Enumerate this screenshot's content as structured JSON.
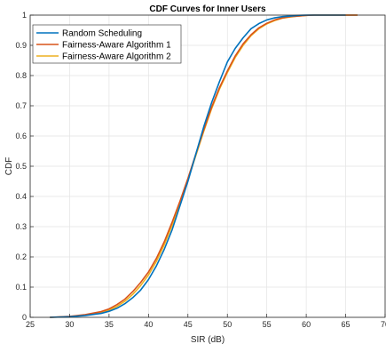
{
  "chart_data": {
    "type": "line",
    "title": "CDF Curves for Inner Users",
    "xlabel": "SIR (dB)",
    "ylabel": "CDF",
    "xlim": [
      25,
      70
    ],
    "ylim": [
      0,
      1
    ],
    "xticks": [
      25,
      30,
      35,
      40,
      45,
      50,
      55,
      60,
      65,
      70
    ],
    "yticks": [
      0,
      0.1,
      0.2,
      0.3,
      0.4,
      0.5,
      0.6,
      0.7,
      0.8,
      0.9,
      1
    ],
    "grid": true,
    "legend_position": "top-left",
    "series": [
      {
        "name": "Random Scheduling",
        "color": "#0072BD",
        "x": [
          27.5,
          30,
          32,
          34,
          35,
          36,
          37,
          38,
          39,
          40,
          41,
          42,
          43,
          44,
          45,
          46,
          47,
          48,
          49,
          50,
          51,
          52,
          53,
          54,
          55,
          56,
          57,
          58,
          59,
          60,
          61,
          62,
          63,
          65
        ],
        "y": [
          0,
          0.002,
          0.006,
          0.013,
          0.02,
          0.03,
          0.045,
          0.065,
          0.09,
          0.125,
          0.17,
          0.225,
          0.29,
          0.37,
          0.45,
          0.54,
          0.63,
          0.71,
          0.78,
          0.845,
          0.89,
          0.925,
          0.955,
          0.972,
          0.984,
          0.991,
          0.995,
          0.997,
          0.999,
          1,
          1,
          1,
          1,
          1
        ]
      },
      {
        "name": "Fairness-Aware Algorithm 1",
        "color": "#D95319",
        "x": [
          27.5,
          30,
          32,
          34,
          35,
          36,
          37,
          38,
          39,
          40,
          41,
          42,
          43,
          44,
          45,
          46,
          47,
          48,
          49,
          50,
          51,
          52,
          53,
          54,
          55,
          56,
          57,
          58,
          59,
          60,
          61,
          62,
          64,
          66.5
        ],
        "y": [
          0,
          0.003,
          0.009,
          0.019,
          0.028,
          0.042,
          0.06,
          0.085,
          0.115,
          0.15,
          0.195,
          0.25,
          0.315,
          0.385,
          0.46,
          0.54,
          0.62,
          0.695,
          0.76,
          0.815,
          0.865,
          0.905,
          0.935,
          0.958,
          0.973,
          0.984,
          0.991,
          0.995,
          0.997,
          0.999,
          1,
          1,
          1,
          1
        ]
      },
      {
        "name": "Fairness-Aware Algorithm 2",
        "color": "#EDB120",
        "x": [
          27.5,
          30,
          32,
          34,
          35,
          36,
          37,
          38,
          39,
          40,
          41,
          42,
          43,
          44,
          45,
          46,
          47,
          48,
          49,
          50,
          51,
          52,
          53,
          54,
          55,
          56,
          57,
          58,
          59,
          60,
          61,
          62,
          64,
          66.5
        ],
        "y": [
          0,
          0.002,
          0.007,
          0.016,
          0.024,
          0.036,
          0.053,
          0.076,
          0.105,
          0.14,
          0.185,
          0.24,
          0.305,
          0.38,
          0.455,
          0.535,
          0.615,
          0.69,
          0.755,
          0.81,
          0.86,
          0.9,
          0.932,
          0.955,
          0.971,
          0.982,
          0.99,
          0.994,
          0.997,
          0.999,
          1,
          1,
          1,
          1
        ]
      }
    ]
  }
}
